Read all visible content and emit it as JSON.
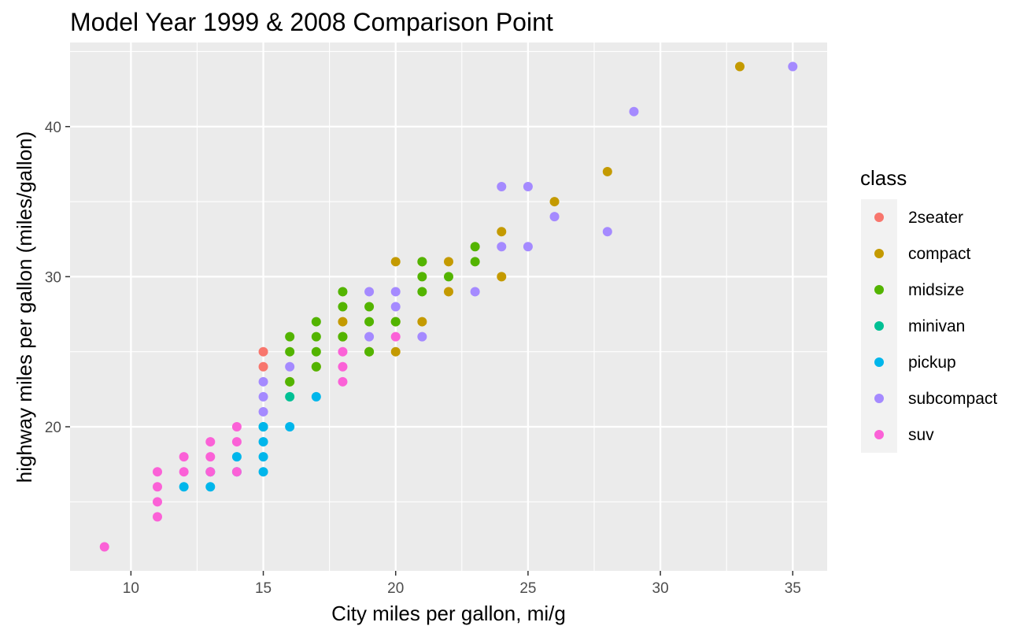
{
  "chart_data": {
    "type": "scatter",
    "title": "Model Year 1999 & 2008 Comparison Point",
    "xlabel": "City miles per gallon, mi/g",
    "ylabel": "highway miles per gallon (miles/gallon)",
    "xlim": [
      7.7,
      36.3
    ],
    "ylim": [
      10.4,
      45.6
    ],
    "x_ticks": [
      10,
      15,
      20,
      25,
      30,
      35
    ],
    "y_ticks": [
      20,
      30,
      40
    ],
    "grid": true,
    "legend": {
      "title": "class",
      "position": "right",
      "entries": [
        "2seater",
        "compact",
        "midsize",
        "minivan",
        "pickup",
        "subcompact",
        "suv"
      ]
    },
    "colors": {
      "2seater": "#F8766D",
      "compact": "#C49A00",
      "midsize": "#53B400",
      "minivan": "#00C094",
      "pickup": "#00B6EB",
      "subcompact": "#A58AFF",
      "suv": "#FB61D7"
    },
    "series": [
      {
        "name": "2seater",
        "points": [
          [
            15,
            25
          ],
          [
            15,
            24
          ]
        ]
      },
      {
        "name": "compact",
        "points": [
          [
            33,
            44
          ],
          [
            28,
            37
          ],
          [
            26,
            35
          ],
          [
            24,
            33
          ],
          [
            24,
            30
          ],
          [
            22,
            31
          ],
          [
            22,
            29
          ],
          [
            21,
            31
          ],
          [
            21,
            27
          ],
          [
            20,
            31
          ],
          [
            20,
            27
          ],
          [
            20,
            25
          ],
          [
            19,
            25
          ],
          [
            18,
            27
          ],
          [
            18,
            26
          ],
          [
            17,
            24
          ],
          [
            16,
            23
          ]
        ]
      },
      {
        "name": "midsize",
        "points": [
          [
            23,
            32
          ],
          [
            23,
            31
          ],
          [
            22,
            30
          ],
          [
            21,
            31
          ],
          [
            21,
            30
          ],
          [
            21,
            29
          ],
          [
            20,
            27
          ],
          [
            19,
            28
          ],
          [
            19,
            27
          ],
          [
            19,
            25
          ],
          [
            18,
            29
          ],
          [
            18,
            28
          ],
          [
            18,
            26
          ],
          [
            17,
            27
          ],
          [
            17,
            26
          ],
          [
            17,
            25
          ],
          [
            17,
            24
          ],
          [
            16,
            26
          ],
          [
            16,
            25
          ],
          [
            16,
            23
          ]
        ]
      },
      {
        "name": "minivan",
        "points": [
          [
            16,
            22
          ],
          [
            15,
            20
          ]
        ]
      },
      {
        "name": "pickup",
        "points": [
          [
            17,
            22
          ],
          [
            16,
            20
          ],
          [
            15,
            20
          ],
          [
            15,
            19
          ],
          [
            15,
            18
          ],
          [
            15,
            17
          ],
          [
            14,
            18
          ],
          [
            14,
            17
          ],
          [
            13,
            17
          ],
          [
            13,
            16
          ],
          [
            12,
            16
          ]
        ]
      },
      {
        "name": "subcompact",
        "points": [
          [
            35,
            44
          ],
          [
            29,
            41
          ],
          [
            28,
            33
          ],
          [
            26,
            34
          ],
          [
            25,
            36
          ],
          [
            25,
            32
          ],
          [
            24,
            36
          ],
          [
            24,
            32
          ],
          [
            23,
            29
          ],
          [
            21,
            26
          ],
          [
            20,
            29
          ],
          [
            20,
            28
          ],
          [
            19,
            29
          ],
          [
            19,
            26
          ],
          [
            16,
            24
          ],
          [
            15,
            23
          ],
          [
            15,
            22
          ],
          [
            15,
            21
          ]
        ]
      },
      {
        "name": "suv",
        "points": [
          [
            20,
            26
          ],
          [
            18,
            25
          ],
          [
            18,
            24
          ],
          [
            18,
            23
          ],
          [
            14,
            20
          ],
          [
            14,
            19
          ],
          [
            14,
            17
          ],
          [
            13,
            19
          ],
          [
            13,
            18
          ],
          [
            13,
            17
          ],
          [
            12,
            18
          ],
          [
            12,
            17
          ],
          [
            11,
            17
          ],
          [
            11,
            16
          ],
          [
            11,
            15
          ],
          [
            11,
            14
          ],
          [
            9,
            12
          ]
        ]
      }
    ]
  }
}
